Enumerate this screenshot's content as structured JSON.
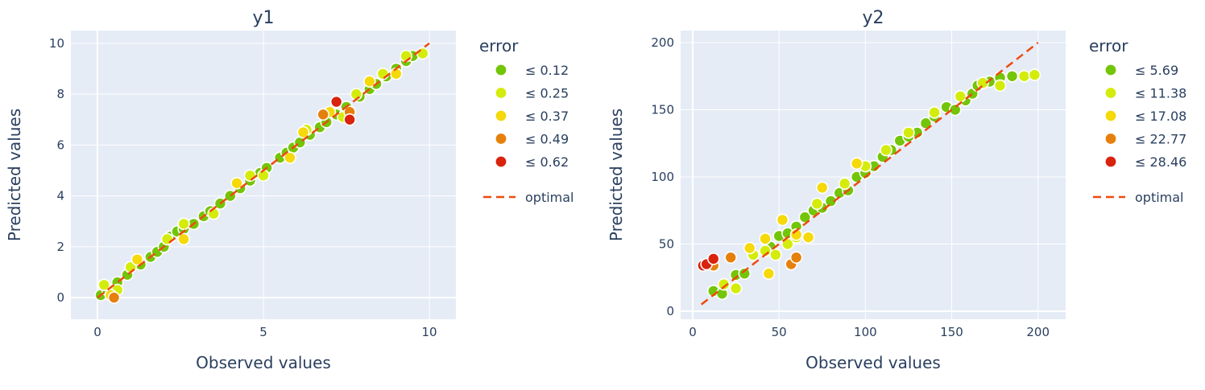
{
  "chart_data": [
    {
      "type": "scatter",
      "title": "y1",
      "xlabel": "Observed values",
      "ylabel": "Predicted values",
      "xlim": [
        -0.8,
        10.8
      ],
      "ylim": [
        -0.85,
        10.5
      ],
      "xticks": [
        0,
        5,
        10
      ],
      "yticks": [
        0,
        2,
        4,
        6,
        8,
        10
      ],
      "grid": true,
      "legend_position": "right",
      "legend": {
        "title": "error",
        "entries": [
          {
            "label": "≤ 0.12",
            "color": "#73c509"
          },
          {
            "label": "≤ 0.25",
            "color": "#d4ec0c"
          },
          {
            "label": "≤ 0.37",
            "color": "#f5d90a"
          },
          {
            "label": "≤ 0.49",
            "color": "#e6800c"
          },
          {
            "label": "≤ 0.62",
            "color": "#d9230c"
          }
        ],
        "line_entry": {
          "label": "optimal",
          "color": "#ee4a10"
        }
      },
      "optimal_line": {
        "x": [
          0,
          10
        ],
        "y": [
          0,
          10
        ]
      },
      "series": [
        {
          "name": "≤ 0.12",
          "color": "#73c509",
          "points": [
            [
              0.1,
              0.1
            ],
            [
              0.3,
              0.3
            ],
            [
              0.6,
              0.6
            ],
            [
              0.9,
              0.9
            ],
            [
              1.3,
              1.3
            ],
            [
              1.6,
              1.6
            ],
            [
              1.8,
              1.8
            ],
            [
              2.0,
              2.0
            ],
            [
              2.2,
              2.4
            ],
            [
              2.4,
              2.6
            ],
            [
              2.6,
              2.7
            ],
            [
              2.9,
              2.9
            ],
            [
              3.2,
              3.2
            ],
            [
              3.4,
              3.4
            ],
            [
              3.7,
              3.7
            ],
            [
              4.0,
              4.0
            ],
            [
              4.3,
              4.3
            ],
            [
              4.6,
              4.6
            ],
            [
              4.9,
              4.9
            ],
            [
              5.1,
              5.1
            ],
            [
              5.5,
              5.5
            ],
            [
              5.7,
              5.7
            ],
            [
              5.9,
              5.9
            ],
            [
              6.1,
              6.1
            ],
            [
              6.4,
              6.4
            ],
            [
              6.7,
              6.7
            ],
            [
              6.9,
              6.9
            ],
            [
              7.2,
              7.2
            ],
            [
              7.5,
              7.5
            ],
            [
              7.9,
              7.9
            ],
            [
              8.2,
              8.2
            ],
            [
              8.4,
              8.4
            ],
            [
              8.7,
              8.7
            ],
            [
              9.0,
              9.0
            ],
            [
              9.3,
              9.3
            ],
            [
              9.5,
              9.5
            ]
          ]
        },
        {
          "name": "≤ 0.25",
          "color": "#d4ec0c",
          "points": [
            [
              0.2,
              0.5
            ],
            [
              0.6,
              0.3
            ],
            [
              1.0,
              1.2
            ],
            [
              2.1,
              2.3
            ],
            [
              2.6,
              2.9
            ],
            [
              3.5,
              3.3
            ],
            [
              4.6,
              4.8
            ],
            [
              5.0,
              4.8
            ],
            [
              6.3,
              6.6
            ],
            [
              7.4,
              7.1
            ],
            [
              7.8,
              8.0
            ],
            [
              8.6,
              8.8
            ],
            [
              9.3,
              9.5
            ],
            [
              9.8,
              9.6
            ]
          ]
        },
        {
          "name": "≤ 0.37",
          "color": "#f5d90a",
          "points": [
            [
              0.4,
              0.1
            ],
            [
              1.2,
              1.5
            ],
            [
              2.6,
              2.3
            ],
            [
              4.2,
              4.5
            ],
            [
              5.8,
              5.5
            ],
            [
              6.2,
              6.5
            ],
            [
              7.0,
              7.3
            ],
            [
              8.2,
              8.5
            ],
            [
              9.0,
              8.8
            ]
          ]
        },
        {
          "name": "≤ 0.49",
          "color": "#e6800c",
          "points": [
            [
              0.5,
              0.0
            ],
            [
              6.8,
              7.2
            ],
            [
              7.6,
              7.3
            ]
          ]
        },
        {
          "name": "≤ 0.62",
          "color": "#d9230c",
          "points": [
            [
              7.2,
              7.7
            ],
            [
              7.6,
              7.0
            ]
          ]
        }
      ]
    },
    {
      "type": "scatter",
      "title": "y2",
      "xlabel": "Observed values",
      "ylabel": "Predicted values",
      "xlim": [
        -7,
        216
      ],
      "ylim": [
        -6,
        209
      ],
      "xticks": [
        0,
        50,
        100,
        150,
        200
      ],
      "yticks": [
        0,
        50,
        100,
        150,
        200
      ],
      "grid": true,
      "legend_position": "right",
      "legend": {
        "title": "error",
        "entries": [
          {
            "label": "≤ 5.69",
            "color": "#73c509"
          },
          {
            "label": "≤ 11.38",
            "color": "#d4ec0c"
          },
          {
            "label": "≤ 17.08",
            "color": "#f5d90a"
          },
          {
            "label": "≤ 22.77",
            "color": "#e6800c"
          },
          {
            "label": "≤ 28.46",
            "color": "#d9230c"
          }
        ],
        "line_entry": {
          "label": "optimal",
          "color": "#ee4a10"
        }
      },
      "optimal_line": {
        "x": [
          5,
          200
        ],
        "y": [
          5,
          200
        ]
      },
      "series": [
        {
          "name": "≤ 5.69",
          "color": "#73c509",
          "points": [
            [
              12,
              15
            ],
            [
              17,
              13
            ],
            [
              25,
              27
            ],
            [
              30,
              28
            ],
            [
              45,
              48
            ],
            [
              50,
              56
            ],
            [
              55,
              58
            ],
            [
              60,
              63
            ],
            [
              65,
              70
            ],
            [
              70,
              75
            ],
            [
              75,
              77
            ],
            [
              80,
              82
            ],
            [
              85,
              88
            ],
            [
              90,
              90
            ],
            [
              95,
              100
            ],
            [
              100,
              103
            ],
            [
              105,
              108
            ],
            [
              110,
              115
            ],
            [
              115,
              120
            ],
            [
              120,
              127
            ],
            [
              125,
              130
            ],
            [
              130,
              133
            ],
            [
              135,
              140
            ],
            [
              140,
              145
            ],
            [
              147,
              152
            ],
            [
              152,
              150
            ],
            [
              158,
              157
            ],
            [
              162,
              162
            ],
            [
              165,
              168
            ],
            [
              172,
              171
            ],
            [
              178,
              174
            ],
            [
              185,
              175
            ]
          ]
        },
        {
          "name": "≤ 11.38",
          "color": "#d4ec0c",
          "points": [
            [
              18,
              20
            ],
            [
              25,
              17
            ],
            [
              35,
              42
            ],
            [
              42,
              45
            ],
            [
              48,
              42
            ],
            [
              55,
              50
            ],
            [
              60,
              55
            ],
            [
              72,
              80
            ],
            [
              88,
              95
            ],
            [
              100,
              108
            ],
            [
              112,
              120
            ],
            [
              125,
              133
            ],
            [
              140,
              148
            ],
            [
              155,
              160
            ],
            [
              168,
              170
            ],
            [
              178,
              168
            ],
            [
              192,
              175
            ],
            [
              198,
              176
            ]
          ]
        },
        {
          "name": "≤ 17.08",
          "color": "#f5d90a",
          "points": [
            [
              33,
              47
            ],
            [
              42,
              54
            ],
            [
              44,
              28
            ],
            [
              52,
              68
            ],
            [
              60,
              57
            ],
            [
              67,
              55
            ],
            [
              75,
              92
            ],
            [
              95,
              110
            ]
          ]
        },
        {
          "name": "≤ 22.77",
          "color": "#e6800c",
          "points": [
            [
              12,
              34
            ],
            [
              22,
              40
            ],
            [
              57,
              35
            ],
            [
              60,
              40
            ]
          ]
        },
        {
          "name": "≤ 28.46",
          "color": "#d9230c",
          "points": [
            [
              6,
              34
            ],
            [
              8,
              35
            ],
            [
              12,
              39
            ]
          ]
        }
      ]
    }
  ]
}
